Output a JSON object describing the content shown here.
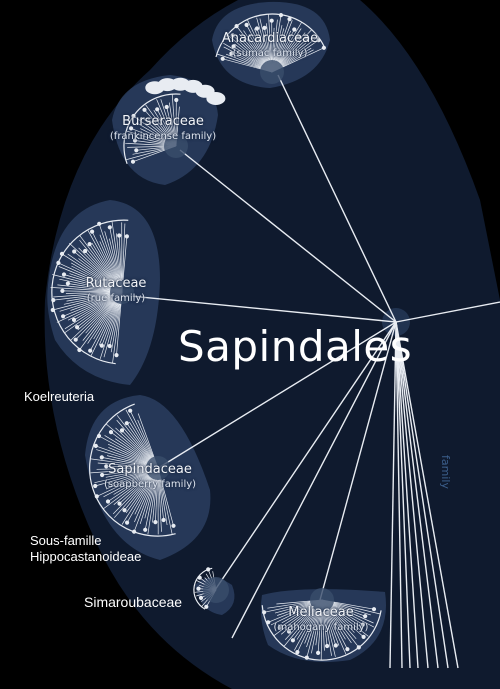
{
  "order": {
    "name": "Sapindales",
    "rank_label": "family"
  },
  "families": [
    {
      "name": "Anacardiaceae",
      "common": "(sumac family)"
    },
    {
      "name": "Burseraceae",
      "common": "(frankincense family)"
    },
    {
      "name": "Rutaceae",
      "common": "(rue family)"
    },
    {
      "name": "Sapindaceae",
      "common": "(soapberry family)"
    },
    {
      "name": "Meliaceae",
      "common": "(mahogany family)"
    }
  ],
  "overlays": {
    "koelreuteria": "Koelreuteria",
    "sous_famille_line1": "Sous-famille",
    "sous_famille_line2": "Hippocastanoideae",
    "simaroubaceae": "Simaroubaceae"
  },
  "colors": {
    "background": "#000000",
    "shape_fill": "#0f1a2e",
    "highlight": "#2a3e5f",
    "fan": "#e8ecf2"
  }
}
